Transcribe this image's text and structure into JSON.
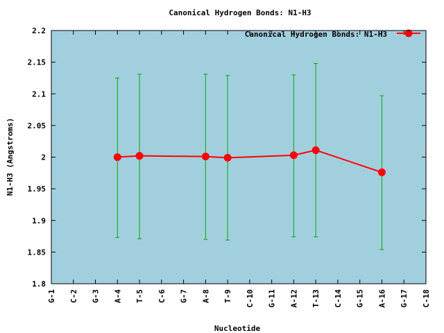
{
  "chart_data": {
    "type": "line",
    "title": "Canonical Hydrogen Bonds: N1-H3",
    "xlabel": "Nucleotide",
    "ylabel": "N1-H3 (Angstroms)",
    "categories": [
      "G-1",
      "C-2",
      "G-3",
      "A-4",
      "T-5",
      "C-6",
      "G-7",
      "A-8",
      "T-9",
      "C-10",
      "G-11",
      "A-12",
      "T-13",
      "C-14",
      "G-15",
      "A-16",
      "G-17",
      "C-18"
    ],
    "ylim": [
      1.8,
      2.2
    ],
    "yticks": [
      "1.8",
      "1.85",
      "1.9",
      "1.95",
      "2",
      "2.05",
      "2.1",
      "2.15",
      "2.2"
    ],
    "legend_position": "top-right",
    "grid": false,
    "colors": {
      "plot_background": "#a2cfde",
      "line": "#ff0000",
      "errorbar": "#00aa00"
    },
    "series": [
      {
        "name": "Canonical Hydrogen Bonds: N1-H3",
        "points": [
          {
            "x": "A-4",
            "y": 2.0,
            "err_low": 1.873,
            "err_high": 2.125
          },
          {
            "x": "T-5",
            "y": 2.002,
            "err_low": 1.871,
            "err_high": 2.131
          },
          {
            "x": "A-8",
            "y": 2.001,
            "err_low": 1.87,
            "err_high": 2.131
          },
          {
            "x": "T-9",
            "y": 1.999,
            "err_low": 1.869,
            "err_high": 2.129
          },
          {
            "x": "A-12",
            "y": 2.003,
            "err_low": 1.874,
            "err_high": 2.13
          },
          {
            "x": "T-13",
            "y": 2.011,
            "err_low": 1.874,
            "err_high": 2.148
          },
          {
            "x": "A-16",
            "y": 1.976,
            "err_low": 1.854,
            "err_high": 2.097
          }
        ]
      }
    ]
  }
}
